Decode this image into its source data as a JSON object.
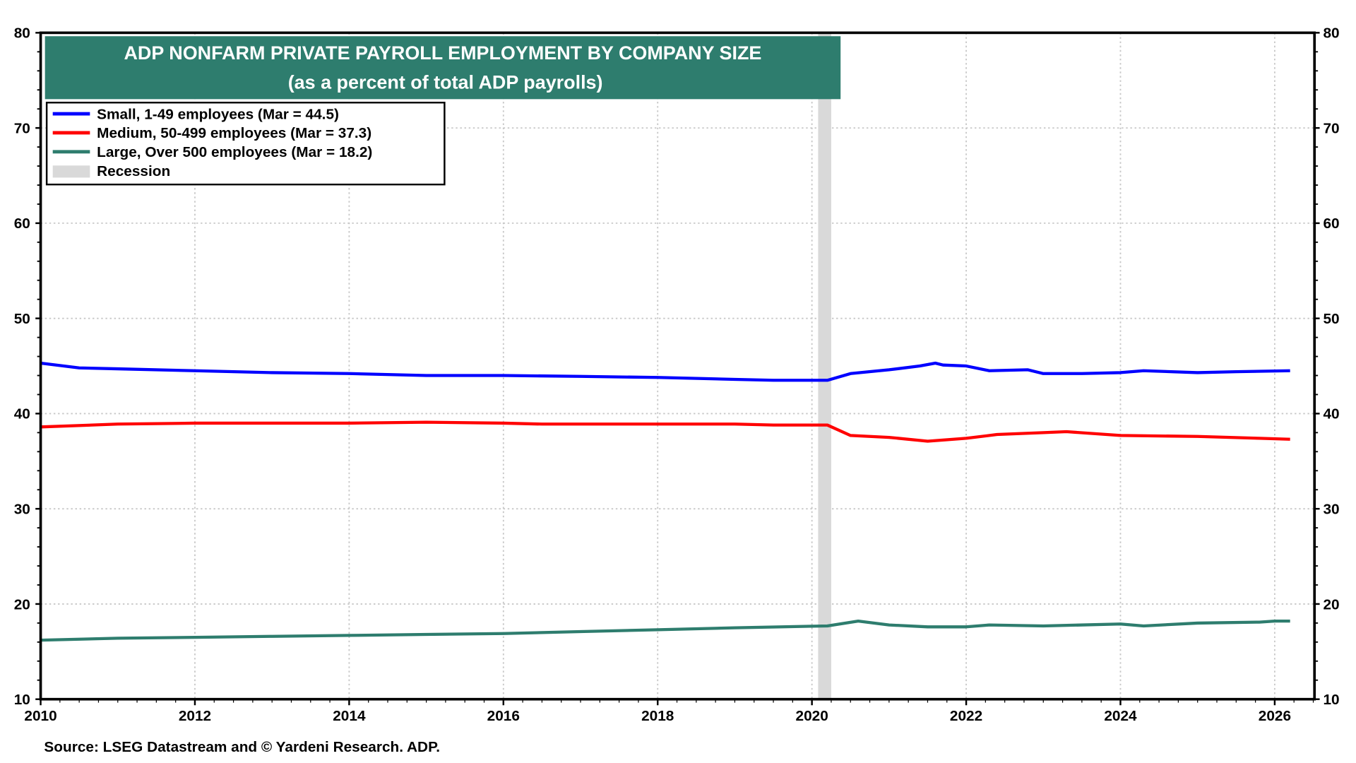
{
  "chart_data": {
    "type": "line",
    "title": "ADP NONFARM PRIVATE PAYROLL EMPLOYMENT BY COMPANY SIZE",
    "subtitle": "(as a percent of total ADP payrolls)",
    "source": "Source: LSEG Datastream and © Yardeni Research. ADP.",
    "xlim": [
      2010,
      2026.5
    ],
    "ylim": [
      10,
      80
    ],
    "x_ticks": [
      "2010",
      "2012",
      "2014",
      "2016",
      "2018",
      "2020",
      "2022",
      "2024",
      "2026"
    ],
    "y_ticks": [
      "10",
      "20",
      "30",
      "40",
      "50",
      "60",
      "70",
      "80"
    ],
    "y_axis_right": true,
    "grid": true,
    "legend_placement": "top-left",
    "recession": {
      "label": "Recession",
      "start": 2020.08,
      "end": 2020.25,
      "color": "#d9d9d9"
    },
    "series": [
      {
        "name": "Small, 1-49 employees (Mar = 44.5)",
        "color": "#0000ff",
        "x": [
          2010,
          2010.5,
          2011,
          2012,
          2013,
          2014,
          2015,
          2016,
          2017,
          2018,
          2019,
          2019.5,
          2020.2,
          2020.5,
          2021,
          2021.4,
          2021.6,
          2021.7,
          2022,
          2022.3,
          2022.8,
          2023,
          2023.5,
          2024,
          2024.3,
          2025,
          2025.5,
          2026.2
        ],
        "y": [
          45.3,
          44.8,
          44.7,
          44.5,
          44.3,
          44.2,
          44.0,
          44.0,
          43.9,
          43.8,
          43.6,
          43.5,
          43.5,
          44.2,
          44.6,
          45.0,
          45.3,
          45.1,
          45.0,
          44.5,
          44.6,
          44.2,
          44.2,
          44.3,
          44.5,
          44.3,
          44.4,
          44.5
        ]
      },
      {
        "name": "Medium, 50-499 employees (Mar = 37.3)",
        "color": "#ff0000",
        "x": [
          2010,
          2011,
          2012,
          2014,
          2015,
          2016,
          2016.5,
          2019,
          2019.5,
          2020.2,
          2020.5,
          2021,
          2021.5,
          2022,
          2022.4,
          2023,
          2023.3,
          2024,
          2025,
          2025.8,
          2026.2
        ],
        "y": [
          38.6,
          38.9,
          39.0,
          39.0,
          39.1,
          39.0,
          38.9,
          38.9,
          38.8,
          38.8,
          37.7,
          37.5,
          37.1,
          37.4,
          37.8,
          38.0,
          38.1,
          37.7,
          37.6,
          37.4,
          37.3
        ]
      },
      {
        "name": "Large, Over 500 employees (Mar = 18.2)",
        "color": "#2e7d6e",
        "x": [
          2010,
          2011,
          2012,
          2013,
          2014,
          2015,
          2016,
          2017,
          2018,
          2019,
          2020.2,
          2020.6,
          2021,
          2021.5,
          2022,
          2022.3,
          2023,
          2024,
          2024.3,
          2025,
          2025.8,
          2026,
          2026.2
        ],
        "y": [
          16.2,
          16.4,
          16.5,
          16.6,
          16.7,
          16.8,
          16.9,
          17.1,
          17.3,
          17.5,
          17.7,
          18.2,
          17.8,
          17.6,
          17.6,
          17.8,
          17.7,
          17.9,
          17.7,
          18.0,
          18.1,
          18.2,
          18.2
        ]
      }
    ]
  }
}
